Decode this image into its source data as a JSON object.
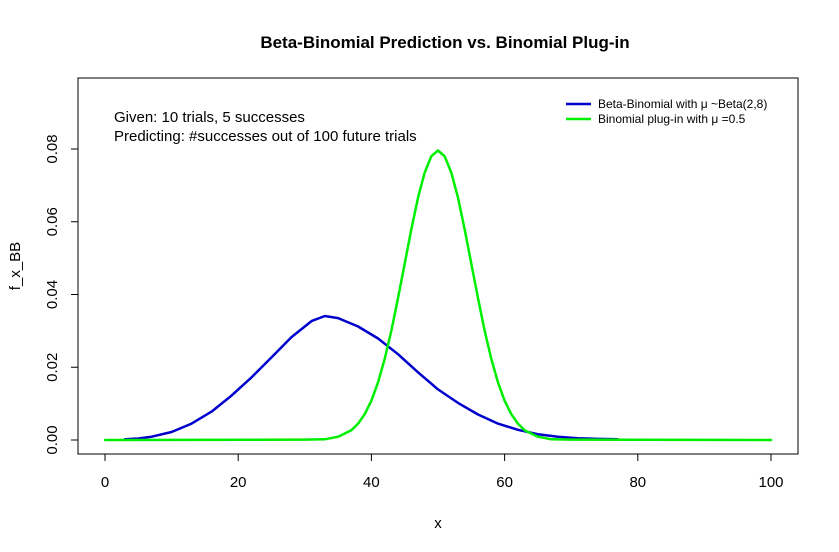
{
  "chart_data": {
    "type": "line",
    "title": "Beta-Binomial Prediction vs. Binomial Plug-in",
    "xlabel": "x",
    "ylabel": "f_x_BB",
    "xlim": [
      0,
      100
    ],
    "ylim": [
      0,
      0.08
    ],
    "x_ticks": [
      "0",
      "20",
      "40",
      "60",
      "80",
      "100"
    ],
    "y_ticks": [
      "0.00",
      "0.02",
      "0.04",
      "0.06",
      "0.08"
    ],
    "grid": false,
    "legend_position": "top-right",
    "annotations": [
      "Given: 10 trials, 5 successes",
      "Predicting: #successes out of 100 future trials"
    ],
    "series": [
      {
        "name": "Beta-Binomial with μ ~Beta(2,8)",
        "color": "#0000cd",
        "x": [
          3,
          5,
          7,
          10,
          13,
          16,
          19,
          22,
          25,
          28,
          31,
          33,
          35,
          38,
          41,
          44,
          47,
          50,
          53,
          56,
          59,
          62,
          65,
          68,
          71,
          74,
          77
        ],
        "y": [
          0.0002,
          0.0004,
          0.0009,
          0.0022,
          0.0045,
          0.0078,
          0.0122,
          0.0172,
          0.0227,
          0.0283,
          0.0327,
          0.0341,
          0.0335,
          0.0312,
          0.0279,
          0.0236,
          0.0186,
          0.0139,
          0.0102,
          0.007,
          0.0045,
          0.0028,
          0.0016,
          0.0009,
          0.0005,
          0.0003,
          0.0002
        ]
      },
      {
        "name": "Binomial plug-in with μ =0.5",
        "color": "#00ee00",
        "x": [
          0,
          30,
          33,
          35,
          37,
          38,
          39,
          40,
          41,
          42,
          43,
          44,
          45,
          46,
          47,
          48,
          49,
          50,
          51,
          52,
          53,
          54,
          55,
          56,
          57,
          58,
          59,
          60,
          61,
          62,
          63,
          65,
          67,
          70,
          100
        ],
        "y": [
          0,
          0.0001,
          0.0002,
          0.0009,
          0.0027,
          0.0045,
          0.0071,
          0.0108,
          0.0159,
          0.0223,
          0.0301,
          0.039,
          0.0485,
          0.058,
          0.0666,
          0.0735,
          0.078,
          0.0796,
          0.078,
          0.0735,
          0.0666,
          0.058,
          0.0485,
          0.039,
          0.0301,
          0.0223,
          0.0159,
          0.0108,
          0.0071,
          0.0045,
          0.0027,
          0.0009,
          0.0002,
          0.0001,
          0
        ]
      }
    ]
  }
}
